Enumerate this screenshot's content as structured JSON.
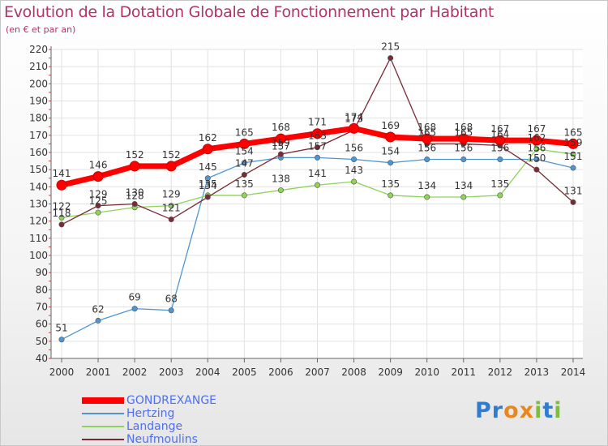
{
  "title": "Evolution de la Dotation Globale de Fonctionnement par Habitant",
  "subtitle": "(en € et par an)",
  "brand": {
    "letters": [
      {
        "ch": "P",
        "color": "#2f7dd1"
      },
      {
        "ch": "r",
        "color": "#2f7dd1"
      },
      {
        "ch": "o",
        "color": "#e8871e"
      },
      {
        "ch": "x",
        "color": "#e8871e"
      },
      {
        "ch": "i",
        "color": "#7dbf3b"
      },
      {
        "ch": "t",
        "color": "#2f7dd1"
      },
      {
        "ch": "i",
        "color": "#7dbf3b"
      }
    ]
  },
  "chart_data": {
    "type": "line",
    "title": "Evolution de la Dotation Globale de Fonctionnement par Habitant",
    "subtitle": "(en € et par an)",
    "xlabel": "",
    "ylabel": "",
    "x": [
      "2000",
      "2001",
      "2002",
      "2003",
      "2004",
      "2005",
      "2006",
      "2007",
      "2008",
      "2009",
      "2010",
      "2011",
      "2012",
      "2013",
      "2014"
    ],
    "ylim": [
      40,
      220
    ],
    "yticks": [
      40,
      50,
      60,
      70,
      80,
      90,
      100,
      110,
      120,
      130,
      140,
      150,
      160,
      170,
      180,
      190,
      200,
      210,
      220
    ],
    "grid": true,
    "legend_position": "bottom-left",
    "series": [
      {
        "name": "GONDREXANGE",
        "color": "#ff0000",
        "values": [
          141,
          146,
          152,
          152,
          162,
          165,
          168,
          171,
          174,
          169,
          168,
          168,
          167,
          167,
          165
        ],
        "labels": [
          "141",
          "146",
          "152",
          "152",
          "162",
          "165",
          "168",
          "171",
          "174",
          "169",
          "168",
          "168",
          "167",
          "167",
          "165"
        ]
      },
      {
        "name": "Hertzing",
        "color": "#4f96d0",
        "values": [
          51,
          62,
          69,
          68,
          145,
          154,
          157,
          157,
          156,
          154,
          156,
          156,
          156,
          156,
          151
        ],
        "labels": [
          "51",
          "62",
          "69",
          "68",
          "145",
          "154",
          "157",
          "157",
          "156",
          "154",
          "156",
          "156",
          "156",
          "156",
          "151"
        ]
      },
      {
        "name": "Landange",
        "color": "#8ed456",
        "values": [
          122,
          125,
          128,
          129,
          135,
          135,
          138,
          141,
          143,
          135,
          134,
          134,
          135,
          162,
          159
        ],
        "labels": [
          "122",
          "125",
          "128",
          "129",
          "135",
          "135",
          "138",
          "141",
          "143",
          "135",
          "134",
          "134",
          "135",
          "162",
          "159"
        ]
      },
      {
        "name": "Neufmoulins",
        "color": "#7a2a35",
        "values": [
          118,
          129,
          130,
          121,
          134,
          147,
          159,
          163,
          173,
          215,
          165,
          165,
          164,
          150,
          131
        ],
        "labels": [
          "118",
          "129",
          "130",
          "121",
          "134",
          "147",
          "159",
          "163",
          "173",
          "215",
          "165",
          "165",
          "164",
          "150",
          "131"
        ]
      }
    ]
  }
}
